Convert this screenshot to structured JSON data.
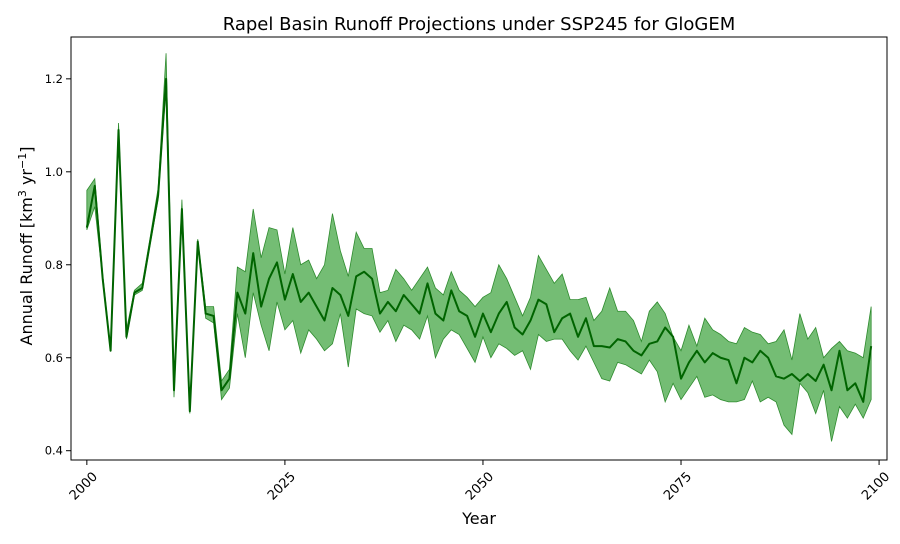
{
  "chart_data": {
    "type": "area",
    "title": "Rapel Basin Runoff Projections under SSP245 for GloGEM",
    "xlabel": "Year",
    "ylabel": "Annual Runoff [km",
    "ylabel_sup1": "3",
    "ylabel_mid": " yr",
    "ylabel_sup2": "−1",
    "ylabel_end": "]",
    "xlim": [
      1998,
      2101
    ],
    "ylim": [
      0.38,
      1.29
    ],
    "x_ticks": [
      2000,
      2025,
      2050,
      2075,
      2100
    ],
    "y_ticks": [
      0.4,
      0.6,
      0.8,
      1.0,
      1.2
    ],
    "y_tick_labels": [
      "0.4",
      "0.6",
      "0.8",
      "1.0",
      "1.2"
    ],
    "grid": false,
    "colors": {
      "line": "#006400",
      "band": "#5cb25c",
      "band_edge": "#2e8b2e"
    },
    "x": [
      2000,
      2001,
      2002,
      2003,
      2004,
      2005,
      2006,
      2007,
      2008,
      2009,
      2010,
      2011,
      2012,
      2013,
      2014,
      2015,
      2016,
      2017,
      2018,
      2019,
      2020,
      2021,
      2022,
      2023,
      2024,
      2025,
      2026,
      2027,
      2028,
      2029,
      2030,
      2031,
      2032,
      2033,
      2034,
      2035,
      2036,
      2037,
      2038,
      2039,
      2040,
      2041,
      2042,
      2043,
      2044,
      2045,
      2046,
      2047,
      2048,
      2049,
      2050,
      2051,
      2052,
      2053,
      2054,
      2055,
      2056,
      2057,
      2058,
      2059,
      2060,
      2061,
      2062,
      2063,
      2064,
      2065,
      2066,
      2067,
      2068,
      2069,
      2070,
      2071,
      2072,
      2073,
      2074,
      2075,
      2076,
      2077,
      2078,
      2079,
      2080,
      2081,
      2082,
      2083,
      2084,
      2085,
      2086,
      2087,
      2088,
      2089,
      2090,
      2091,
      2092,
      2093,
      2094,
      2095,
      2096,
      2097,
      2098,
      2099
    ],
    "series": [
      {
        "kind": "median",
        "values": [
          0.88,
          0.97,
          0.77,
          0.615,
          1.09,
          0.645,
          0.74,
          0.75,
          0.85,
          0.95,
          1.2,
          0.53,
          0.92,
          0.485,
          0.85,
          0.695,
          0.69,
          0.53,
          0.555,
          0.74,
          0.695,
          0.825,
          0.71,
          0.77,
          0.805,
          0.725,
          0.78,
          0.72,
          0.74,
          0.71,
          0.68,
          0.75,
          0.735,
          0.69,
          0.775,
          0.785,
          0.77,
          0.695,
          0.72,
          0.7,
          0.735,
          0.715,
          0.695,
          0.76,
          0.695,
          0.68,
          0.745,
          0.7,
          0.69,
          0.645,
          0.695,
          0.655,
          0.695,
          0.72,
          0.665,
          0.65,
          0.68,
          0.725,
          0.715,
          0.655,
          0.685,
          0.695,
          0.645,
          0.685,
          0.625,
          0.625,
          0.622,
          0.64,
          0.635,
          0.615,
          0.605,
          0.63,
          0.635,
          0.665,
          0.645,
          0.555,
          0.59,
          0.615,
          0.59,
          0.61,
          0.6,
          0.595,
          0.545,
          0.6,
          0.59,
          0.615,
          0.6,
          0.56,
          0.555,
          0.565,
          0.55,
          0.565,
          0.55,
          0.585,
          0.53,
          0.615,
          0.53,
          0.545,
          0.505,
          0.625
        ]
      },
      {
        "kind": "upper",
        "values": [
          0.96,
          0.985,
          0.78,
          0.62,
          1.105,
          0.66,
          0.745,
          0.76,
          0.86,
          0.965,
          1.255,
          0.54,
          0.94,
          0.49,
          0.855,
          0.71,
          0.71,
          0.55,
          0.575,
          0.795,
          0.785,
          0.92,
          0.815,
          0.88,
          0.875,
          0.78,
          0.88,
          0.8,
          0.81,
          0.77,
          0.8,
          0.91,
          0.83,
          0.775,
          0.87,
          0.835,
          0.835,
          0.74,
          0.745,
          0.79,
          0.77,
          0.745,
          0.77,
          0.795,
          0.75,
          0.735,
          0.785,
          0.745,
          0.73,
          0.71,
          0.73,
          0.74,
          0.8,
          0.77,
          0.73,
          0.69,
          0.73,
          0.82,
          0.79,
          0.76,
          0.78,
          0.725,
          0.725,
          0.73,
          0.68,
          0.7,
          0.75,
          0.7,
          0.7,
          0.68,
          0.635,
          0.7,
          0.72,
          0.695,
          0.645,
          0.615,
          0.67,
          0.625,
          0.685,
          0.66,
          0.65,
          0.635,
          0.63,
          0.665,
          0.655,
          0.65,
          0.63,
          0.635,
          0.66,
          0.595,
          0.695,
          0.64,
          0.665,
          0.6,
          0.62,
          0.635,
          0.615,
          0.61,
          0.6,
          0.71
        ]
      },
      {
        "kind": "lower",
        "values": [
          0.875,
          0.925,
          0.77,
          0.615,
          1.085,
          0.64,
          0.735,
          0.745,
          0.845,
          0.94,
          1.185,
          0.515,
          0.905,
          0.48,
          0.845,
          0.685,
          0.675,
          0.51,
          0.535,
          0.695,
          0.6,
          0.74,
          0.67,
          0.615,
          0.72,
          0.66,
          0.68,
          0.61,
          0.66,
          0.64,
          0.615,
          0.63,
          0.695,
          0.58,
          0.705,
          0.695,
          0.69,
          0.655,
          0.68,
          0.635,
          0.67,
          0.66,
          0.64,
          0.69,
          0.6,
          0.64,
          0.66,
          0.65,
          0.62,
          0.59,
          0.645,
          0.6,
          0.63,
          0.62,
          0.605,
          0.615,
          0.575,
          0.65,
          0.635,
          0.64,
          0.64,
          0.615,
          0.595,
          0.625,
          0.59,
          0.555,
          0.55,
          0.59,
          0.585,
          0.575,
          0.565,
          0.595,
          0.57,
          0.505,
          0.545,
          0.51,
          0.535,
          0.56,
          0.515,
          0.52,
          0.51,
          0.505,
          0.505,
          0.51,
          0.55,
          0.505,
          0.515,
          0.505,
          0.455,
          0.435,
          0.545,
          0.525,
          0.48,
          0.53,
          0.42,
          0.495,
          0.47,
          0.5,
          0.47,
          0.51
        ]
      }
    ]
  }
}
